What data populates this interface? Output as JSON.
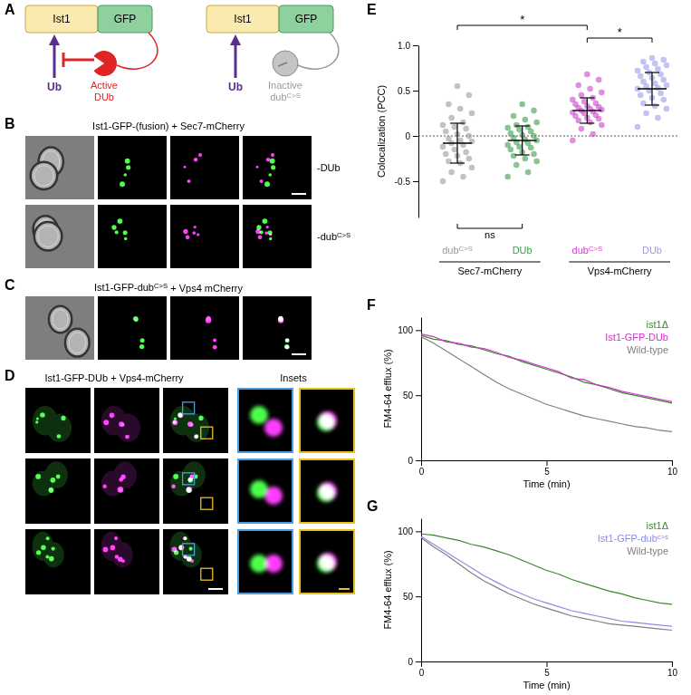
{
  "panel_labels": [
    "A",
    "B",
    "C",
    "D",
    "E",
    "F",
    "G"
  ],
  "diagram": {
    "left": {
      "protein": "Ist1",
      "tag": "GFP",
      "ub": "Ub",
      "enzyme": [
        "Active",
        "DUb"
      ]
    },
    "right": {
      "protein": "Ist1",
      "tag": "GFP",
      "ub": "Ub",
      "enzyme": [
        "Inactive",
        [
          "dub",
          {
            "sup": "C>S"
          }
        ]
      ]
    }
  },
  "micrographs": {
    "B": {
      "title": "Ist1-GFP-(fusion) + Sec7-mCherry",
      "rows": [
        "-DUb",
        [
          "-dub",
          {
            "sup": "C>S"
          }
        ]
      ]
    },
    "C": {
      "title": [
        "Ist1-GFP-dub",
        {
          "sup": "C>S"
        },
        " + Vps4 mCherry"
      ]
    },
    "D": {
      "title": "Ist1-GFP-DUb + Vps4-mCherry",
      "insets": "Insets"
    }
  },
  "chart_data": [
    {
      "type": "strip",
      "ylabel": "Colocalization (PCC)",
      "categories": [
        [
          "dub",
          {
            "sup": "C>S"
          }
        ],
        "DUb",
        [
          "dub",
          {
            "sup": "C>S"
          }
        ],
        "DUb"
      ],
      "groups": [
        "Sec7-mCherry",
        "Sec7-mCherry",
        "Vps4-mCherry",
        "Vps4-mCherry"
      ],
      "colors": [
        "#9a9a9a",
        "#3a9d4a",
        "#cc44cc",
        "#9b9be8"
      ],
      "values": [
        [
          -0.5,
          -0.45,
          -0.4,
          -0.35,
          -0.3,
          -0.28,
          -0.25,
          -0.22,
          -0.2,
          -0.18,
          -0.15,
          -0.12,
          -0.1,
          -0.08,
          -0.06,
          -0.05,
          -0.03,
          0,
          0.02,
          0.05,
          0.08,
          0.1,
          0.12,
          0.15,
          0.2,
          0.25,
          0.3,
          0.35,
          0.45,
          0.55
        ],
        [
          -0.45,
          -0.4,
          -0.32,
          -0.28,
          -0.25,
          -0.22,
          -0.2,
          -0.18,
          -0.15,
          -0.13,
          -0.12,
          -0.1,
          -0.08,
          -0.07,
          -0.05,
          -0.04,
          -0.02,
          0,
          0.01,
          0.03,
          0.05,
          0.07,
          0.09,
          0.1,
          0.12,
          0.15,
          0.18,
          0.22,
          0.28,
          0.35
        ],
        [
          -0.05,
          0.02,
          0.08,
          0.12,
          0.15,
          0.17,
          0.19,
          0.2,
          0.22,
          0.23,
          0.25,
          0.26,
          0.27,
          0.28,
          0.29,
          0.3,
          0.31,
          0.32,
          0.33,
          0.35,
          0.36,
          0.38,
          0.4,
          0.42,
          0.45,
          0.48,
          0.52,
          0.56,
          0.62,
          0.68
        ],
        [
          0.1,
          0.2,
          0.25,
          0.3,
          0.33,
          0.36,
          0.4,
          0.42,
          0.45,
          0.47,
          0.5,
          0.52,
          0.53,
          0.55,
          0.56,
          0.58,
          0.6,
          0.62,
          0.64,
          0.66,
          0.68,
          0.7,
          0.72,
          0.74,
          0.76,
          0.78,
          0.8,
          0.82,
          0.84,
          0.86
        ]
      ],
      "means": [
        -0.08,
        -0.05,
        0.28,
        0.52
      ],
      "errors": [
        0.22,
        0.16,
        0.14,
        0.18
      ],
      "reference": 0,
      "annotations": [
        {
          "text": "ns",
          "from": 0,
          "to": 1,
          "side": "below"
        },
        {
          "text": "*",
          "from": 0,
          "to": 2,
          "side": "above"
        },
        {
          "text": "*",
          "from": 2,
          "to": 3,
          "side": "above"
        }
      ],
      "ylim": [
        -0.9,
        1.0
      ],
      "yticks": [
        -0.5,
        0,
        0.5,
        {
          "value": 1,
          "label": "1.0"
        }
      ]
    },
    {
      "type": "line",
      "ylabel": "FM4-64 efflux (%)",
      "xlabel": "Time (min)",
      "x": [
        0,
        0.5,
        1,
        1.5,
        2,
        2.5,
        3,
        3.5,
        4,
        4.5,
        5,
        5.5,
        6,
        6.5,
        7,
        7.5,
        8,
        8.5,
        9,
        9.5,
        10
      ],
      "series": [
        {
          "name": "ist1Δ",
          "color": "#3a8a2a",
          "values": [
            96,
            93,
            92,
            89,
            88,
            85,
            82,
            80,
            76,
            73,
            70,
            67,
            64,
            60,
            58,
            55,
            52,
            50,
            48,
            46,
            44
          ]
        },
        {
          "name": "Ist1-GFP-DUb",
          "color": "#d030d0",
          "values": [
            97,
            95,
            91,
            90,
            87,
            86,
            83,
            79,
            77,
            74,
            71,
            68,
            63,
            62,
            58,
            56,
            53,
            51,
            49,
            47,
            45
          ]
        },
        {
          "name": "Wild-type",
          "color": "#808080",
          "values": [
            95,
            90,
            84,
            78,
            72,
            66,
            60,
            55,
            51,
            47,
            43,
            40,
            37,
            34,
            32,
            30,
            28,
            26,
            25,
            23,
            22
          ]
        }
      ],
      "xlim": [
        0,
        10
      ],
      "xticks": [
        0,
        5,
        10
      ],
      "ylim": [
        0,
        110
      ],
      "yticks": [
        0,
        50,
        100
      ],
      "legend": "upper right"
    },
    {
      "type": "line",
      "ylabel": "FM4-64 efflux (%)",
      "xlabel": "Time (min)",
      "x": [
        0,
        0.5,
        1,
        1.5,
        2,
        2.5,
        3,
        3.5,
        4,
        4.5,
        5,
        5.5,
        6,
        6.5,
        7,
        7.5,
        8,
        8.5,
        9,
        9.5,
        10
      ],
      "series": [
        {
          "name": "ist1Δ",
          "color": "#3a8a2a",
          "values": [
            98,
            97,
            95,
            93,
            90,
            88,
            85,
            82,
            78,
            74,
            70,
            67,
            63,
            60,
            57,
            54,
            52,
            49,
            47,
            45,
            44
          ]
        },
        {
          "name": [
            "Ist1-GFP-dub",
            {
              "sup": "c>s"
            }
          ],
          "color": "#8c8ce6",
          "values": [
            96,
            90,
            84,
            78,
            72,
            66,
            61,
            56,
            52,
            48,
            45,
            42,
            39,
            37,
            35,
            33,
            31,
            30,
            29,
            28,
            27
          ]
        },
        {
          "name": "Wild-type",
          "color": "#808080",
          "values": [
            95,
            88,
            82,
            75,
            68,
            62,
            57,
            52,
            48,
            44,
            41,
            38,
            35,
            33,
            31,
            29,
            28,
            27,
            26,
            25,
            24
          ]
        }
      ],
      "xlim": [
        0,
        10
      ],
      "xticks": [
        0,
        5,
        10
      ],
      "ylim": [
        0,
        110
      ],
      "yticks": [
        0,
        50,
        100
      ],
      "legend": "upper right"
    }
  ]
}
